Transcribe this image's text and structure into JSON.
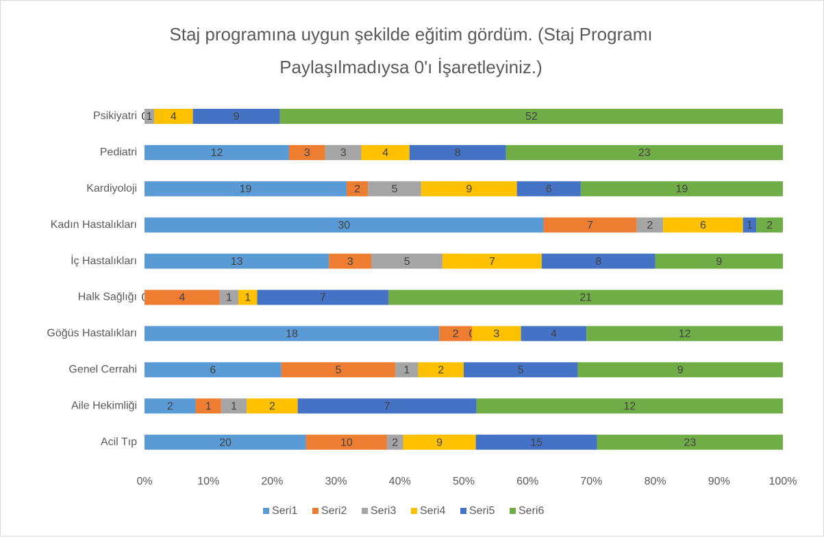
{
  "chart_data": {
    "type": "bar",
    "orientation": "horizontal",
    "stacking": "percent",
    "title": [
      "Staj programına uygun şekilde eğitim gördüm. (Staj Programı",
      "Paylaşılmadıysa 0'ı İşaretleyiniz.)"
    ],
    "categories": [
      "Psikiyatri",
      "Pediatri",
      "Kardiyoloji",
      "Kadın Hastalıkları",
      "İç Hastalıkları",
      "Halk Sağlığı",
      "Göğüs Hastalıkları",
      "Genel Cerrahi",
      "Aile Hekimliği",
      "Acil Tıp"
    ],
    "series": [
      {
        "name": "Seri1",
        "color": "#5b9bd5",
        "values": [
          0,
          12,
          19,
          30,
          13,
          0,
          18,
          6,
          2,
          20
        ]
      },
      {
        "name": "Seri2",
        "color": "#ed7d31",
        "values": [
          0,
          3,
          2,
          7,
          3,
          4,
          2,
          5,
          1,
          10
        ]
      },
      {
        "name": "Seri3",
        "color": "#a5a5a5",
        "values": [
          1,
          3,
          5,
          2,
          5,
          1,
          0,
          1,
          1,
          2
        ]
      },
      {
        "name": "Seri4",
        "color": "#ffc000",
        "values": [
          4,
          4,
          9,
          6,
          7,
          1,
          3,
          2,
          2,
          9
        ]
      },
      {
        "name": "Seri5",
        "color": "#4472c4",
        "values": [
          9,
          8,
          6,
          1,
          8,
          7,
          4,
          5,
          7,
          15
        ]
      },
      {
        "name": "Seri6",
        "color": "#70ad47",
        "values": [
          52,
          23,
          19,
          2,
          9,
          21,
          12,
          9,
          12,
          23
        ]
      }
    ],
    "xlim": [
      0,
      100
    ],
    "xticks": [
      {
        "value": 0,
        "label": "0%"
      },
      {
        "value": 10,
        "label": "10%"
      },
      {
        "value": 20,
        "label": "20%"
      },
      {
        "value": 30,
        "label": "30%"
      },
      {
        "value": 40,
        "label": "40%"
      },
      {
        "value": 50,
        "label": "50%"
      },
      {
        "value": 60,
        "label": "60%"
      },
      {
        "value": 70,
        "label": "70%"
      },
      {
        "value": 80,
        "label": "80%"
      },
      {
        "value": 90,
        "label": "90%"
      },
      {
        "value": 100,
        "label": "100%"
      }
    ],
    "grid": false,
    "legend": "bottom",
    "data_labels": true
  }
}
